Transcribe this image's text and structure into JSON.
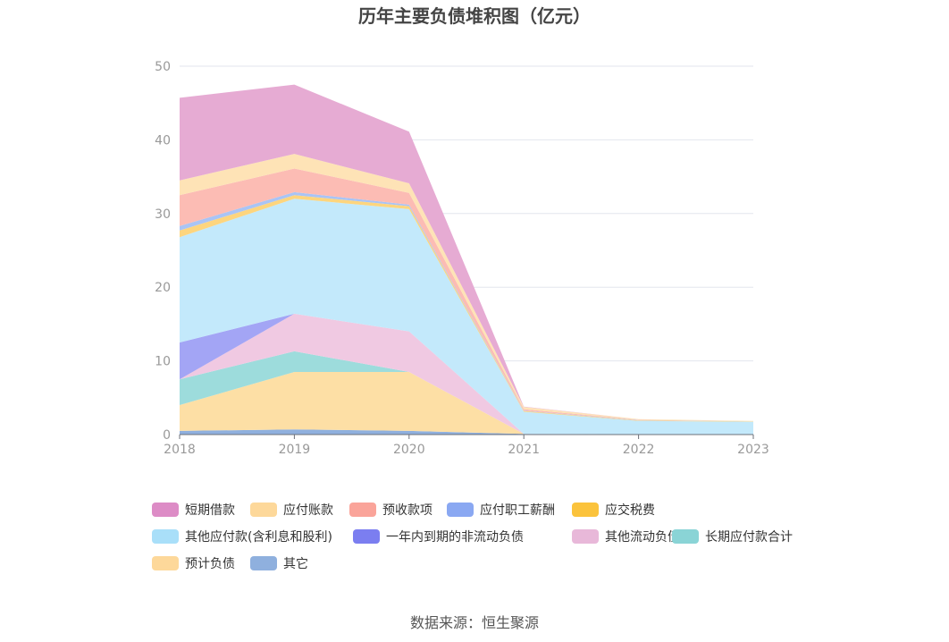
{
  "chart_data": {
    "type": "area",
    "stacked": true,
    "title": "历年主要负债堆积图（亿元）",
    "x": [
      "2018",
      "2019",
      "2020",
      "2021",
      "2022",
      "2023"
    ],
    "ylim": [
      0,
      50
    ],
    "yticks": [
      0,
      10,
      20,
      30,
      40,
      50
    ],
    "grid": true,
    "legend_position": "bottom",
    "series": [
      {
        "name": "其它",
        "color": "#8fb0de",
        "values": [
          0.5,
          0.7,
          0.5,
          0.1,
          0.05,
          0.05
        ]
      },
      {
        "name": "预计负债",
        "color": "#fddfa5",
        "values": [
          3.5,
          7.8,
          8.0,
          0.0,
          0.0,
          0.0
        ]
      },
      {
        "name": "长期应付款合计",
        "color": "#9ddcdc",
        "values": [
          3.5,
          2.8,
          0.0,
          0.0,
          0.0,
          0.0
        ]
      },
      {
        "name": "其他流动负债",
        "color": "#f0c9e2",
        "values": [
          0.0,
          5.1,
          5.5,
          0.0,
          0.0,
          0.0
        ]
      },
      {
        "name": "一年内到期的非流动负债",
        "color": "#a3a5f5",
        "values": [
          5.0,
          0.0,
          0.0,
          0.0,
          0.0,
          0.0
        ]
      },
      {
        "name": "其他应付款(含利息和股利)",
        "color": "#c3e9fb",
        "values": [
          14.3,
          15.6,
          16.6,
          3.0,
          1.8,
          1.7
        ]
      },
      {
        "name": "应交税费",
        "color": "#fdd57e",
        "values": [
          0.9,
          0.5,
          0.4,
          0.1,
          0.05,
          0.05
        ]
      },
      {
        "name": "应付职工薪酬",
        "color": "#a9c4f5",
        "values": [
          0.6,
          0.4,
          0.2,
          0.05,
          0.05,
          0.0
        ]
      },
      {
        "name": "预收款项",
        "color": "#fcbcb4",
        "values": [
          4.2,
          3.2,
          1.6,
          0.2,
          0.05,
          0.0
        ]
      },
      {
        "name": "应付账款",
        "color": "#fee3b6",
        "values": [
          2.0,
          2.0,
          1.3,
          0.3,
          0.1,
          0.05
        ]
      },
      {
        "name": "短期借款",
        "color": "#e6abd3",
        "values": [
          11.2,
          9.4,
          7.0,
          0.05,
          0.0,
          0.0
        ]
      }
    ]
  },
  "legend": [
    {
      "name": "短期借款",
      "color": "#dd8cc6"
    },
    {
      "name": "应付账款",
      "color": "#fdd89a"
    },
    {
      "name": "预收款项",
      "color": "#faa49a"
    },
    {
      "name": "应付职工薪酬",
      "color": "#8aa8f2"
    },
    {
      "name": "应交税费",
      "color": "#fbc33c"
    },
    {
      "name": "其他应付款(含利息和股利)",
      "color": "#a9dff9"
    },
    {
      "name": "一年内到期的非流动负债",
      "color": "#7b7ef0"
    },
    {
      "name": "其他流动负债",
      "color": "#e8b8d9"
    },
    {
      "name": "长期应付款合计",
      "color": "#8ad4d6"
    },
    {
      "name": "预计负债",
      "color": "#fdd89a"
    },
    {
      "name": "其它",
      "color": "#8fb0de"
    }
  ],
  "source": "数据来源：恒生聚源"
}
